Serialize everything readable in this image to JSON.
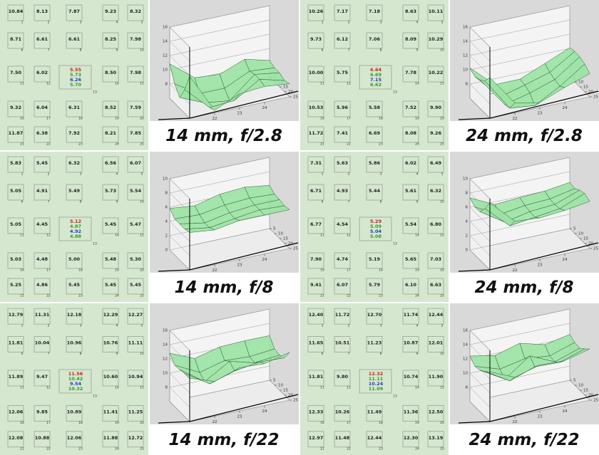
{
  "cell_numbers": [
    "1",
    "2",
    "3",
    "4",
    "5",
    "6",
    "7",
    "8",
    "9",
    "10",
    "11",
    "12",
    "13",
    "14",
    "15",
    "16",
    "17",
    "18",
    "19",
    "20",
    "21",
    "22",
    "23",
    "24",
    "25"
  ],
  "center_colors": [
    "#d0201c",
    "#2e9e2e",
    "#3434c8",
    "#2e9e2e"
  ],
  "panels": [
    {
      "label": "14 mm, f/2.8",
      "cells": [
        [
          "10.84"
        ],
        [
          "8.13"
        ],
        [
          "7.87"
        ],
        [
          "9.23"
        ],
        [
          "8.32"
        ],
        [
          "8.71"
        ],
        [
          "6.61"
        ],
        [
          "6.61"
        ],
        [
          "8.25"
        ],
        [
          "7.98"
        ],
        [
          "7.50"
        ],
        [
          "6.02"
        ],
        [
          "5.55",
          "5.73",
          "6.26",
          "5.70"
        ],
        [
          "8.50"
        ],
        [
          "7.98"
        ],
        [
          "9.32"
        ],
        [
          "6.04"
        ],
        [
          "6.31"
        ],
        [
          "8.52"
        ],
        [
          "7.59"
        ],
        [
          "11.87"
        ],
        [
          "6.38"
        ],
        [
          "7.92"
        ],
        [
          "8.21"
        ],
        [
          "7.85"
        ]
      ],
      "plot": {
        "zlim": [
          6,
          16
        ],
        "zticks": [
          8,
          10,
          12,
          14,
          16
        ],
        "xticks": [
          22,
          23,
          24
        ],
        "yticks": [
          5,
          10,
          15,
          20,
          25
        ]
      }
    },
    {
      "label": "24 mm, f/2.8",
      "cells": [
        [
          "10.26"
        ],
        [
          "7.17"
        ],
        [
          "7.18"
        ],
        [
          "8.63"
        ],
        [
          "10.11"
        ],
        [
          "9.73"
        ],
        [
          "6.12"
        ],
        [
          "7.06"
        ],
        [
          "8.09"
        ],
        [
          "10.29"
        ],
        [
          "10.00"
        ],
        [
          "5.75"
        ],
        [
          "6.64",
          "6.69",
          "7.15",
          "6.62"
        ],
        [
          "7.78"
        ],
        [
          "10.22"
        ],
        [
          "10.53"
        ],
        [
          "5.96"
        ],
        [
          "5.58"
        ],
        [
          "7.52"
        ],
        [
          "9.90"
        ],
        [
          "11.72"
        ],
        [
          "7.41"
        ],
        [
          "6.69"
        ],
        [
          "8.08"
        ],
        [
          "9.26"
        ]
      ],
      "plot": {
        "zlim": [
          6,
          16
        ],
        "zticks": [
          8,
          10,
          12,
          14,
          16
        ],
        "xticks": [
          22,
          23,
          24
        ],
        "yticks": [
          5,
          10,
          15,
          20,
          25
        ]
      }
    },
    {
      "label": "14 mm, f/8",
      "cells": [
        [
          "5.83"
        ],
        [
          "5.45"
        ],
        [
          "6.32"
        ],
        [
          "6.56"
        ],
        [
          "6.07"
        ],
        [
          "5.05"
        ],
        [
          "4.91"
        ],
        [
          "5.49"
        ],
        [
          "5.73"
        ],
        [
          "5.54"
        ],
        [
          "5.05"
        ],
        [
          "4.45"
        ],
        [
          "5.12",
          "4.87",
          "4.92",
          "4.88"
        ],
        [
          "5.45"
        ],
        [
          "5.47"
        ],
        [
          "5.03"
        ],
        [
          "4.48"
        ],
        [
          "5.00"
        ],
        [
          "5.48"
        ],
        [
          "5.30"
        ],
        [
          "5.25"
        ],
        [
          "4.86"
        ],
        [
          "5.45"
        ],
        [
          "5.45"
        ],
        [
          "5.45"
        ]
      ],
      "plot": {
        "zlim": [
          0,
          10
        ],
        "zticks": [
          0,
          2,
          4,
          6,
          8,
          10
        ],
        "xticks": [
          22,
          23,
          24
        ],
        "yticks": [
          5,
          10,
          15,
          20,
          25
        ]
      }
    },
    {
      "label": "24 mm, f/8",
      "cells": [
        [
          "7.31"
        ],
        [
          "5.63"
        ],
        [
          "5.86"
        ],
        [
          "6.02"
        ],
        [
          "6.49"
        ],
        [
          "6.71"
        ],
        [
          "4.93"
        ],
        [
          "5.44"
        ],
        [
          "5.61"
        ],
        [
          "6.32"
        ],
        [
          "6.77"
        ],
        [
          "4.54"
        ],
        [
          "5.29",
          "5.09",
          "5.04",
          "5.08"
        ],
        [
          "5.54"
        ],
        [
          "6.80"
        ],
        [
          "7.90"
        ],
        [
          "4.74"
        ],
        [
          "5.19"
        ],
        [
          "5.65"
        ],
        [
          "7.03"
        ],
        [
          "9.41"
        ],
        [
          "6.07"
        ],
        [
          "5.79"
        ],
        [
          "6.10"
        ],
        [
          "6.63"
        ]
      ],
      "plot": {
        "zlim": [
          0,
          10
        ],
        "zticks": [
          0,
          2,
          4,
          6,
          8,
          10
        ],
        "xticks": [
          22,
          23,
          24
        ],
        "yticks": [
          5,
          10,
          15,
          20,
          25
        ]
      }
    },
    {
      "label": "14 mm, f/22",
      "cells": [
        [
          "12.79"
        ],
        [
          "11.31"
        ],
        [
          "12.18"
        ],
        [
          "12.29"
        ],
        [
          "12.27"
        ],
        [
          "11.81"
        ],
        [
          "10.04"
        ],
        [
          "10.96"
        ],
        [
          "10.76"
        ],
        [
          "11.11"
        ],
        [
          "11.89"
        ],
        [
          "9.47"
        ],
        [
          "11.56",
          "10.42",
          "9.54",
          "10.32"
        ],
        [
          "10.60"
        ],
        [
          "10.94"
        ],
        [
          "12.06"
        ],
        [
          "9.85"
        ],
        [
          "10.89"
        ],
        [
          "11.41"
        ],
        [
          "11.25"
        ],
        [
          "12.08"
        ],
        [
          "10.88"
        ],
        [
          "12.06"
        ],
        [
          "11.88"
        ],
        [
          "12.72"
        ]
      ],
      "plot": {
        "zlim": [
          6,
          16
        ],
        "zticks": [
          8,
          10,
          12,
          14,
          16
        ],
        "xticks": [
          22,
          23,
          24
        ],
        "yticks": [
          5,
          10,
          15,
          20,
          25
        ]
      }
    },
    {
      "label": "24 mm, f/22",
      "cells": [
        [
          "12.40"
        ],
        [
          "11.72"
        ],
        [
          "12.70"
        ],
        [
          "11.74"
        ],
        [
          "12.44"
        ],
        [
          "11.65"
        ],
        [
          "10.51"
        ],
        [
          "11.23"
        ],
        [
          "10.87"
        ],
        [
          "12.01"
        ],
        [
          "11.81"
        ],
        [
          "9.80"
        ],
        [
          "12.32",
          "11.11",
          "10.24",
          "11.09"
        ],
        [
          "10.74"
        ],
        [
          "11.90"
        ],
        [
          "12.33"
        ],
        [
          "10.26"
        ],
        [
          "11.49"
        ],
        [
          "11.36"
        ],
        [
          "12.50"
        ],
        [
          "12.97"
        ],
        [
          "11.48"
        ],
        [
          "12.44"
        ],
        [
          "12.30"
        ],
        [
          "13.19"
        ]
      ],
      "plot": {
        "zlim": [
          6,
          16
        ],
        "zticks": [
          8,
          10,
          12,
          14,
          16
        ],
        "xticks": [
          22,
          23,
          24
        ],
        "yticks": [
          5,
          10,
          15,
          20,
          25
        ]
      }
    }
  ]
}
